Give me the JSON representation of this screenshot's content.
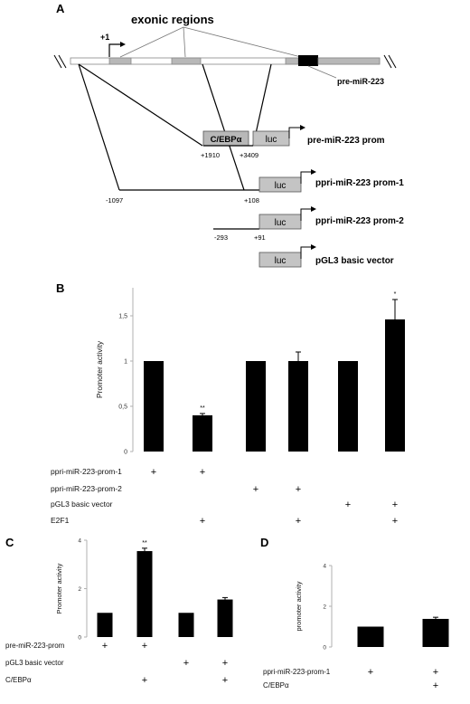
{
  "panel_a": {
    "letter": "A",
    "exonic_label": "exonic regions",
    "tss_label": "+1",
    "pre_mir_label": "pre-miR-223",
    "constructs": [
      {
        "box1": "C/EBPα",
        "box2": "luc",
        "name": "pre-miR-223 prom",
        "start": "+1910",
        "end": "+3409"
      },
      {
        "box1": "",
        "box2": "luc",
        "name": "ppri-miR-223 prom-1",
        "start": "-1097",
        "end": "+108"
      },
      {
        "box1": "",
        "box2": "luc",
        "name": "ppri-miR-223 prom-2",
        "start": "-293",
        "end": "+91"
      },
      {
        "box1": "",
        "box2": "luc",
        "name": "pGL3 basic vector",
        "start": "",
        "end": ""
      }
    ]
  },
  "chart_data": [
    {
      "panel": "B",
      "type": "bar",
      "ylabel": "Promoter activity",
      "ylim": [
        0,
        1.5
      ],
      "yticks": [
        "0",
        "0,5",
        "1",
        "1,5"
      ],
      "yticks_values": [
        0,
        0.5,
        1,
        1.5
      ],
      "values": [
        1,
        0.4,
        1,
        1.0,
        1,
        1.46
      ],
      "errors": [
        0,
        0.02,
        0,
        0.1,
        0,
        0.22
      ],
      "significance": [
        "",
        "**",
        "",
        "",
        "",
        "*"
      ],
      "conditions": [
        {
          "label": "ppri-miR-223-prom-1",
          "marks": [
            "+",
            "+",
            "",
            "",
            "",
            ""
          ]
        },
        {
          "label": "ppri-miR-223-prom-2",
          "marks": [
            "",
            "",
            "+",
            "+",
            "",
            ""
          ]
        },
        {
          "label": "pGL3 basic vector",
          "marks": [
            "",
            "",
            "",
            "",
            "+",
            "+"
          ]
        },
        {
          "label": "E2F1",
          "marks": [
            "",
            "+",
            "",
            "+",
            "",
            "+"
          ]
        }
      ]
    },
    {
      "panel": "C",
      "type": "bar",
      "ylabel": "Promoter activity",
      "ylim": [
        0,
        4
      ],
      "yticks": [
        "0",
        "2",
        "4"
      ],
      "yticks_values": [
        0,
        2,
        4
      ],
      "values": [
        1,
        3.55,
        1,
        1.55
      ],
      "errors": [
        0,
        0.12,
        0,
        0.08
      ],
      "significance": [
        "",
        "**",
        "",
        ""
      ],
      "conditions": [
        {
          "label": "pre-miR-223-prom",
          "marks": [
            "+",
            "+",
            "",
            ""
          ]
        },
        {
          "label": "pGL3 basic vector",
          "marks": [
            "",
            "",
            "+",
            "+"
          ]
        },
        {
          "label": "C/EBPα",
          "marks": [
            "",
            "+",
            "",
            "+"
          ]
        }
      ]
    },
    {
      "panel": "D",
      "type": "bar",
      "ylabel": "promoter activity",
      "ylim": [
        0,
        4
      ],
      "yticks": [
        "0",
        "2",
        "4"
      ],
      "yticks_values": [
        0,
        2,
        4
      ],
      "values": [
        1,
        1.38
      ],
      "errors": [
        0,
        0.08
      ],
      "significance": [
        "",
        ""
      ],
      "conditions": [
        {
          "label": "ppri-miR-223-prom-1",
          "marks": [
            "+",
            "+"
          ]
        },
        {
          "label": "C/EBPα",
          "marks": [
            "",
            "+"
          ]
        }
      ]
    }
  ]
}
